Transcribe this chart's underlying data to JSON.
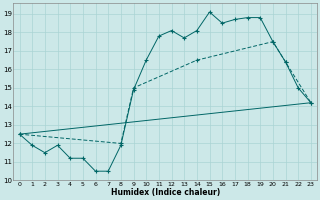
{
  "xlabel": "Humidex (Indice chaleur)",
  "bg_color": "#cce8e8",
  "grid_color": "#aad4d4",
  "line_color": "#006666",
  "xlim": [
    -0.5,
    23.5
  ],
  "ylim": [
    10,
    19.6
  ],
  "yticks": [
    10,
    11,
    12,
    13,
    14,
    15,
    16,
    17,
    18,
    19
  ],
  "xticks": [
    0,
    1,
    2,
    3,
    4,
    5,
    6,
    7,
    8,
    9,
    10,
    11,
    12,
    13,
    14,
    15,
    16,
    17,
    18,
    19,
    20,
    21,
    22,
    23
  ],
  "line1_x": [
    0,
    1,
    2,
    3,
    4,
    5,
    6,
    7,
    8,
    9,
    10,
    11,
    12,
    13,
    14,
    15,
    16,
    17,
    18,
    19,
    20,
    21,
    22,
    23
  ],
  "line1_y": [
    12.5,
    11.9,
    11.5,
    11.9,
    11.2,
    11.2,
    10.5,
    10.5,
    11.9,
    14.9,
    16.5,
    17.8,
    18.1,
    17.7,
    18.1,
    19.1,
    18.5,
    18.7,
    18.8,
    18.8,
    17.5,
    16.4,
    15.0,
    14.2
  ],
  "line2_x": [
    0,
    8,
    9,
    14,
    20,
    21,
    23
  ],
  "line2_y": [
    12.5,
    12.0,
    15.0,
    16.5,
    17.5,
    16.4,
    14.2
  ],
  "line3_x": [
    0,
    23
  ],
  "line3_y": [
    12.5,
    14.2
  ]
}
